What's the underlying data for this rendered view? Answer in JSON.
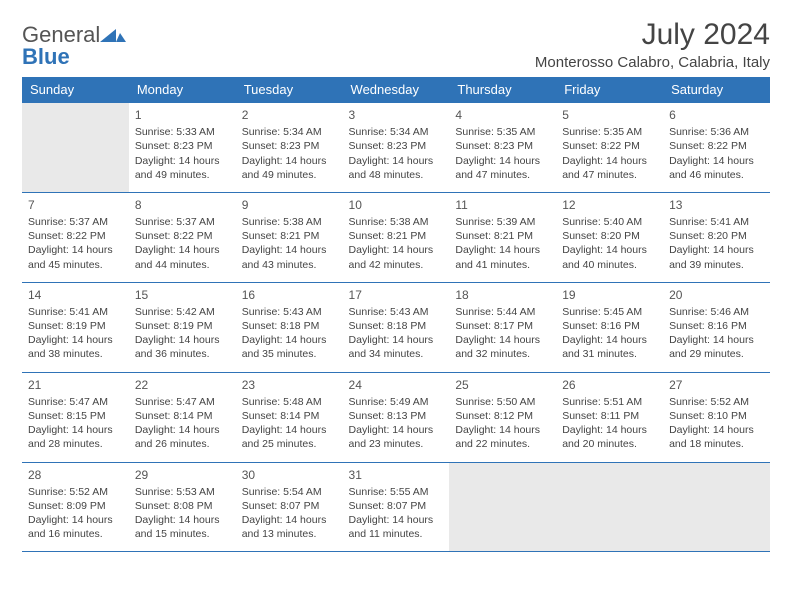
{
  "logo": {
    "word1": "General",
    "word2": "Blue"
  },
  "title": "July 2024",
  "location": "Monterosso Calabro, Calabria, Italy",
  "colors": {
    "accent": "#2f73b7",
    "header_text": "#ffffff",
    "empty_bg": "#e9e9e9"
  },
  "day_headers": [
    "Sunday",
    "Monday",
    "Tuesday",
    "Wednesday",
    "Thursday",
    "Friday",
    "Saturday"
  ],
  "weeks": [
    [
      null,
      {
        "n": "1",
        "sr": "Sunrise: 5:33 AM",
        "ss": "Sunset: 8:23 PM",
        "dl": "Daylight: 14 hours and 49 minutes."
      },
      {
        "n": "2",
        "sr": "Sunrise: 5:34 AM",
        "ss": "Sunset: 8:23 PM",
        "dl": "Daylight: 14 hours and 49 minutes."
      },
      {
        "n": "3",
        "sr": "Sunrise: 5:34 AM",
        "ss": "Sunset: 8:23 PM",
        "dl": "Daylight: 14 hours and 48 minutes."
      },
      {
        "n": "4",
        "sr": "Sunrise: 5:35 AM",
        "ss": "Sunset: 8:23 PM",
        "dl": "Daylight: 14 hours and 47 minutes."
      },
      {
        "n": "5",
        "sr": "Sunrise: 5:35 AM",
        "ss": "Sunset: 8:22 PM",
        "dl": "Daylight: 14 hours and 47 minutes."
      },
      {
        "n": "6",
        "sr": "Sunrise: 5:36 AM",
        "ss": "Sunset: 8:22 PM",
        "dl": "Daylight: 14 hours and 46 minutes."
      }
    ],
    [
      {
        "n": "7",
        "sr": "Sunrise: 5:37 AM",
        "ss": "Sunset: 8:22 PM",
        "dl": "Daylight: 14 hours and 45 minutes."
      },
      {
        "n": "8",
        "sr": "Sunrise: 5:37 AM",
        "ss": "Sunset: 8:22 PM",
        "dl": "Daylight: 14 hours and 44 minutes."
      },
      {
        "n": "9",
        "sr": "Sunrise: 5:38 AM",
        "ss": "Sunset: 8:21 PM",
        "dl": "Daylight: 14 hours and 43 minutes."
      },
      {
        "n": "10",
        "sr": "Sunrise: 5:38 AM",
        "ss": "Sunset: 8:21 PM",
        "dl": "Daylight: 14 hours and 42 minutes."
      },
      {
        "n": "11",
        "sr": "Sunrise: 5:39 AM",
        "ss": "Sunset: 8:21 PM",
        "dl": "Daylight: 14 hours and 41 minutes."
      },
      {
        "n": "12",
        "sr": "Sunrise: 5:40 AM",
        "ss": "Sunset: 8:20 PM",
        "dl": "Daylight: 14 hours and 40 minutes."
      },
      {
        "n": "13",
        "sr": "Sunrise: 5:41 AM",
        "ss": "Sunset: 8:20 PM",
        "dl": "Daylight: 14 hours and 39 minutes."
      }
    ],
    [
      {
        "n": "14",
        "sr": "Sunrise: 5:41 AM",
        "ss": "Sunset: 8:19 PM",
        "dl": "Daylight: 14 hours and 38 minutes."
      },
      {
        "n": "15",
        "sr": "Sunrise: 5:42 AM",
        "ss": "Sunset: 8:19 PM",
        "dl": "Daylight: 14 hours and 36 minutes."
      },
      {
        "n": "16",
        "sr": "Sunrise: 5:43 AM",
        "ss": "Sunset: 8:18 PM",
        "dl": "Daylight: 14 hours and 35 minutes."
      },
      {
        "n": "17",
        "sr": "Sunrise: 5:43 AM",
        "ss": "Sunset: 8:18 PM",
        "dl": "Daylight: 14 hours and 34 minutes."
      },
      {
        "n": "18",
        "sr": "Sunrise: 5:44 AM",
        "ss": "Sunset: 8:17 PM",
        "dl": "Daylight: 14 hours and 32 minutes."
      },
      {
        "n": "19",
        "sr": "Sunrise: 5:45 AM",
        "ss": "Sunset: 8:16 PM",
        "dl": "Daylight: 14 hours and 31 minutes."
      },
      {
        "n": "20",
        "sr": "Sunrise: 5:46 AM",
        "ss": "Sunset: 8:16 PM",
        "dl": "Daylight: 14 hours and 29 minutes."
      }
    ],
    [
      {
        "n": "21",
        "sr": "Sunrise: 5:47 AM",
        "ss": "Sunset: 8:15 PM",
        "dl": "Daylight: 14 hours and 28 minutes."
      },
      {
        "n": "22",
        "sr": "Sunrise: 5:47 AM",
        "ss": "Sunset: 8:14 PM",
        "dl": "Daylight: 14 hours and 26 minutes."
      },
      {
        "n": "23",
        "sr": "Sunrise: 5:48 AM",
        "ss": "Sunset: 8:14 PM",
        "dl": "Daylight: 14 hours and 25 minutes."
      },
      {
        "n": "24",
        "sr": "Sunrise: 5:49 AM",
        "ss": "Sunset: 8:13 PM",
        "dl": "Daylight: 14 hours and 23 minutes."
      },
      {
        "n": "25",
        "sr": "Sunrise: 5:50 AM",
        "ss": "Sunset: 8:12 PM",
        "dl": "Daylight: 14 hours and 22 minutes."
      },
      {
        "n": "26",
        "sr": "Sunrise: 5:51 AM",
        "ss": "Sunset: 8:11 PM",
        "dl": "Daylight: 14 hours and 20 minutes."
      },
      {
        "n": "27",
        "sr": "Sunrise: 5:52 AM",
        "ss": "Sunset: 8:10 PM",
        "dl": "Daylight: 14 hours and 18 minutes."
      }
    ],
    [
      {
        "n": "28",
        "sr": "Sunrise: 5:52 AM",
        "ss": "Sunset: 8:09 PM",
        "dl": "Daylight: 14 hours and 16 minutes."
      },
      {
        "n": "29",
        "sr": "Sunrise: 5:53 AM",
        "ss": "Sunset: 8:08 PM",
        "dl": "Daylight: 14 hours and 15 minutes."
      },
      {
        "n": "30",
        "sr": "Sunrise: 5:54 AM",
        "ss": "Sunset: 8:07 PM",
        "dl": "Daylight: 14 hours and 13 minutes."
      },
      {
        "n": "31",
        "sr": "Sunrise: 5:55 AM",
        "ss": "Sunset: 8:07 PM",
        "dl": "Daylight: 14 hours and 11 minutes."
      },
      null,
      null,
      null
    ]
  ]
}
